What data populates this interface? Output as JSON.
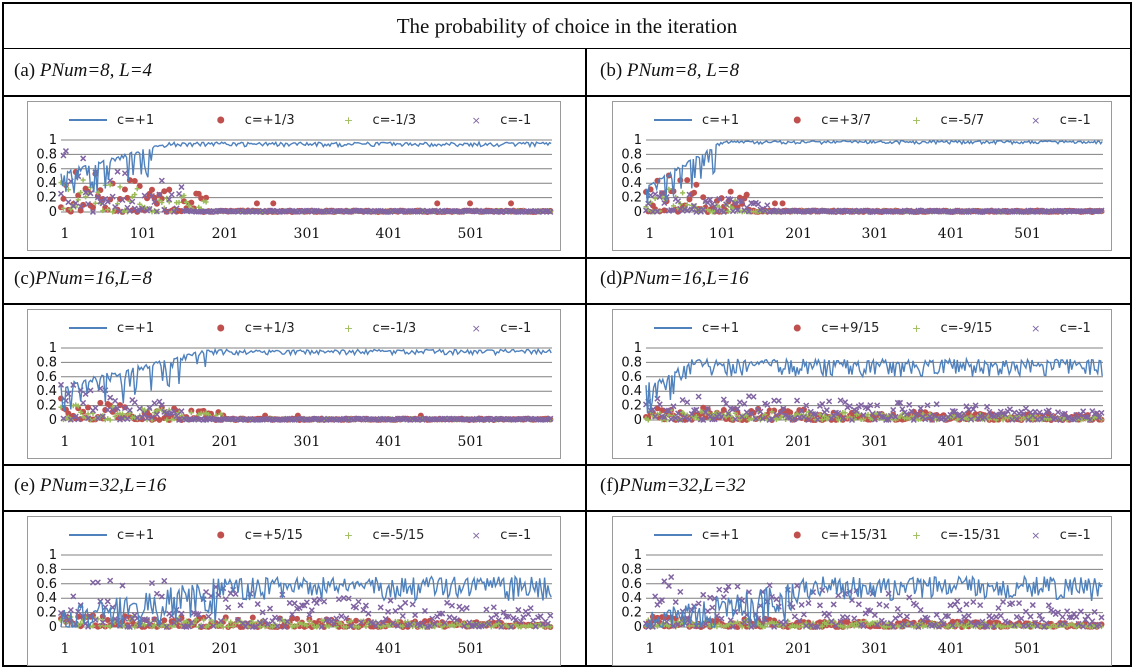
{
  "figure": {
    "title": "The probability of choice in the iteration"
  },
  "colors": {
    "series1": "#4f81bd",
    "series2": "#c0504d",
    "series3": "#9bbb59",
    "series4": "#8064a2",
    "gridline": "#808080"
  },
  "chart_data": [
    {
      "type": "scatter",
      "panel_label": "(a) ",
      "params": "PNum=8, L=4",
      "param_values": {
        "PNum": 8,
        "L": 4
      },
      "xtick_labels": [
        "1",
        "101",
        "201",
        "301",
        "401",
        "501"
      ],
      "ytick_labels": [
        "0",
        "0.2",
        "0.4",
        "0.6",
        "0.8",
        "1"
      ],
      "ylim": [
        0,
        1
      ],
      "xlim": [
        1,
        600
      ],
      "grid": true,
      "legend_position": "top",
      "series": [
        {
          "name": "c=+1",
          "marker": "line",
          "profile": {
            "rise_end": 130,
            "low": 0.55,
            "late": 0.97,
            "noise": 0.04
          }
        },
        {
          "name": "c=+1/3",
          "marker": "dot",
          "profile": {
            "scatter_end": 180,
            "peak": 0.65,
            "outliers": [
              [
                240,
                0.12
              ],
              [
                260,
                0.12
              ],
              [
                460,
                0.12
              ],
              [
                500,
                0.12
              ],
              [
                550,
                0.12
              ]
            ]
          }
        },
        {
          "name": "c=-1/3",
          "marker": "plus",
          "profile": {
            "scatter_end": 180,
            "peak": 0.5,
            "outliers": []
          }
        },
        {
          "name": "c=-1",
          "marker": "cross",
          "profile": {
            "scatter_end": 150,
            "peak": 0.98,
            "outliers": []
          }
        }
      ]
    },
    {
      "type": "scatter",
      "panel_label": "(b) ",
      "params": "PNum=8, L=8",
      "param_values": {
        "PNum": 8,
        "L": 8
      },
      "xtick_labels": [
        "1",
        "101",
        "201",
        "301",
        "401",
        "501"
      ],
      "ytick_labels": [
        "0",
        "0.2",
        "0.4",
        "0.6",
        "0.8",
        "1"
      ],
      "ylim": [
        0,
        1
      ],
      "xlim": [
        1,
        600
      ],
      "grid": true,
      "legend_position": "top",
      "series": [
        {
          "name": "c=+1",
          "marker": "line",
          "profile": {
            "rise_end": 100,
            "low": 0.35,
            "late": 0.99,
            "noise": 0.03
          }
        },
        {
          "name": "c=+3/7",
          "marker": "dot",
          "profile": {
            "scatter_end": 140,
            "peak": 0.6,
            "outliers": [
              [
                170,
                0.12
              ],
              [
                180,
                0.12
              ]
            ]
          }
        },
        {
          "name": "c=-5/7",
          "marker": "plus",
          "profile": {
            "scatter_end": 120,
            "peak": 0.4,
            "outliers": []
          }
        },
        {
          "name": "c=-1",
          "marker": "cross",
          "profile": {
            "scatter_end": 160,
            "peak": 0.35,
            "outliers": []
          }
        }
      ]
    },
    {
      "type": "scatter",
      "panel_label": "(c)",
      "params": "PNum=16,L=8",
      "param_values": {
        "PNum": 16,
        "L": 8
      },
      "xtick_labels": [
        "1",
        "101",
        "201",
        "301",
        "401",
        "501"
      ],
      "ytick_labels": [
        "0",
        "0.2",
        "0.4",
        "0.6",
        "0.8",
        "1"
      ],
      "ylim": [
        0,
        1
      ],
      "xlim": [
        1,
        600
      ],
      "grid": true,
      "legend_position": "top",
      "series": [
        {
          "name": "c=+1",
          "marker": "line",
          "profile": {
            "rise_end": 180,
            "low": 0.5,
            "late": 0.98,
            "noise": 0.05
          }
        },
        {
          "name": "c=+1/3",
          "marker": "dot",
          "profile": {
            "scatter_end": 200,
            "peak": 0.3,
            "outliers": [
              [
                250,
                0.06
              ],
              [
                290,
                0.06
              ],
              [
                440,
                0.06
              ]
            ]
          }
        },
        {
          "name": "c=-1/3",
          "marker": "plus",
          "profile": {
            "scatter_end": 200,
            "peak": 0.25,
            "outliers": []
          }
        },
        {
          "name": "c=-1",
          "marker": "cross",
          "profile": {
            "scatter_end": 150,
            "peak": 0.55,
            "outliers": []
          }
        }
      ]
    },
    {
      "type": "scatter",
      "panel_label": "(d)",
      "params": "PNum=16,L=16",
      "param_values": {
        "PNum": 16,
        "L": 16
      },
      "xtick_labels": [
        "1",
        "101",
        "201",
        "301",
        "401",
        "501"
      ],
      "ytick_labels": [
        "0",
        "0.2",
        "0.4",
        "0.6",
        "0.8",
        "1"
      ],
      "ylim": [
        0,
        1
      ],
      "xlim": [
        1,
        600
      ],
      "grid": true,
      "legend_position": "top",
      "series": [
        {
          "name": "c=+1",
          "marker": "line",
          "profile": {
            "rise_end": 60,
            "low": 0.5,
            "late": 0.85,
            "noise": 0.16
          }
        },
        {
          "name": "c=+9/15",
          "marker": "dot",
          "profile": {
            "scatter_end": 600,
            "peak": 0.2,
            "outliers": []
          }
        },
        {
          "name": "c=-9/15",
          "marker": "plus",
          "profile": {
            "scatter_end": 600,
            "peak": 0.15,
            "outliers": []
          }
        },
        {
          "name": "c=-1",
          "marker": "cross",
          "profile": {
            "scatter_end": 600,
            "peak": 0.4,
            "outliers": []
          }
        }
      ]
    },
    {
      "type": "scatter",
      "panel_label": "(e) ",
      "params": "PNum=32,L=16",
      "param_values": {
        "PNum": 32,
        "L": 16
      },
      "xtick_labels": [
        "1",
        "101",
        "201",
        "301",
        "401",
        "501"
      ],
      "ytick_labels": [
        "0",
        "0.2",
        "0.4",
        "0.6",
        "0.8",
        "1"
      ],
      "ylim": [
        0,
        1
      ],
      "xlim": [
        1,
        600
      ],
      "grid": true,
      "legend_position": "top",
      "series": [
        {
          "name": "c=+1",
          "marker": "line",
          "profile": {
            "rise_end": 200,
            "low": 0.25,
            "late": 0.7,
            "noise": 0.22
          }
        },
        {
          "name": "c=+5/15",
          "marker": "dot",
          "profile": {
            "scatter_end": 600,
            "peak": 0.18,
            "outliers": []
          }
        },
        {
          "name": "c=-5/15",
          "marker": "plus",
          "profile": {
            "scatter_end": 600,
            "peak": 0.15,
            "outliers": []
          }
        },
        {
          "name": "c=-1",
          "marker": "cross",
          "profile": {
            "scatter_end": 600,
            "peak": 0.75,
            "outliers": []
          }
        }
      ]
    },
    {
      "type": "scatter",
      "panel_label": "(f)",
      "params": "PNum=32,L=32",
      "param_values": {
        "PNum": 32,
        "L": 32
      },
      "xtick_labels": [
        "1",
        "101",
        "201",
        "301",
        "401",
        "501"
      ],
      "ytick_labels": [
        "0",
        "0.2",
        "0.4",
        "0.6",
        "0.8",
        "1"
      ],
      "ylim": [
        0,
        1
      ],
      "xlim": [
        1,
        600
      ],
      "grid": true,
      "legend_position": "top",
      "series": [
        {
          "name": "c=+1",
          "marker": "line",
          "profile": {
            "rise_end": 220,
            "low": 0.2,
            "late": 0.7,
            "noise": 0.22
          }
        },
        {
          "name": "c=+15/31",
          "marker": "dot",
          "profile": {
            "scatter_end": 600,
            "peak": 0.15,
            "outliers": []
          }
        },
        {
          "name": "c=-15/31",
          "marker": "plus",
          "profile": {
            "scatter_end": 600,
            "peak": 0.12,
            "outliers": []
          }
        },
        {
          "name": "c=-1",
          "marker": "cross",
          "profile": {
            "scatter_end": 600,
            "peak": 0.75,
            "outliers": []
          }
        }
      ]
    }
  ]
}
